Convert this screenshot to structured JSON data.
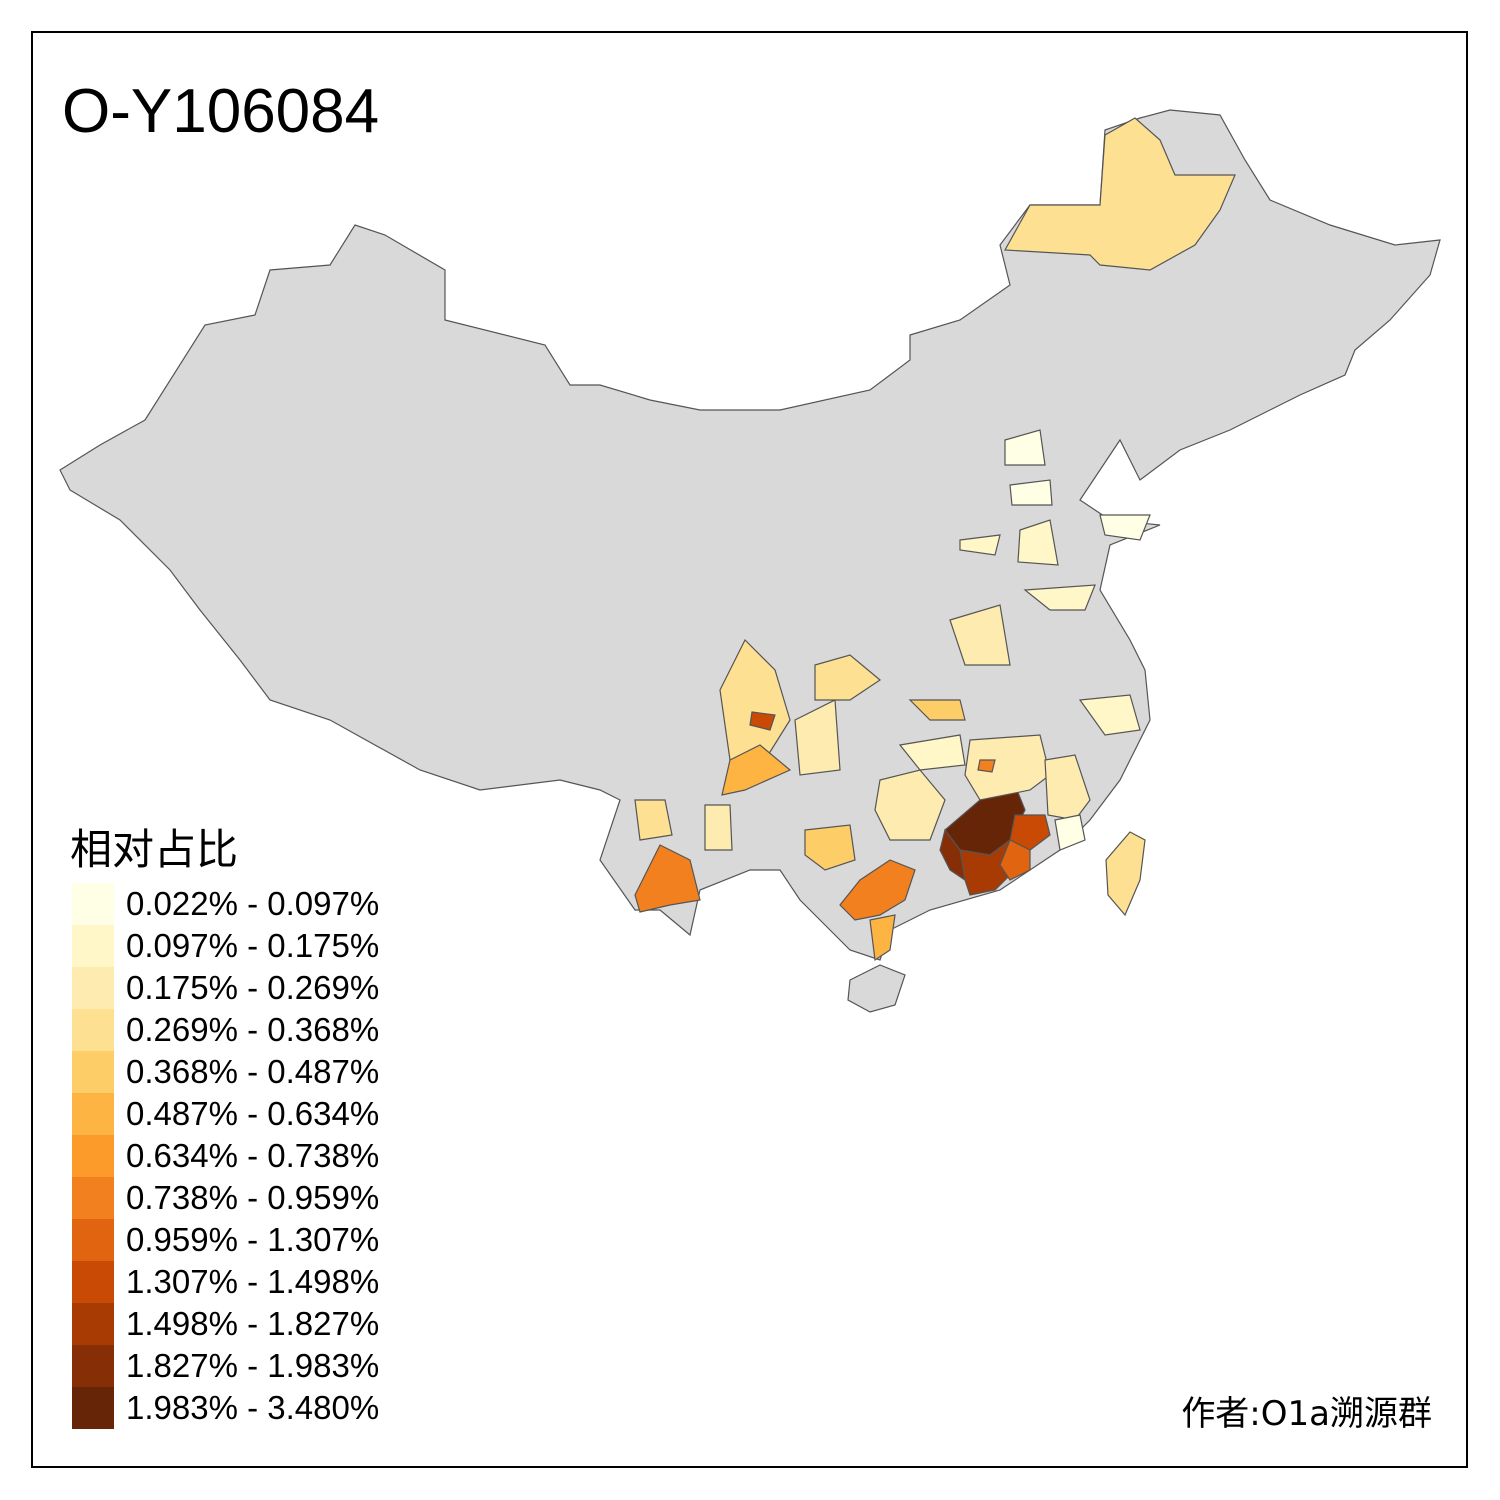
{
  "title": "O-Y106084",
  "legend": {
    "title": "相对占比",
    "items": [
      {
        "label": "0.022% - 0.097%",
        "color": "#FFFFE5"
      },
      {
        "label": "0.097% - 0.175%",
        "color": "#FFF7C8"
      },
      {
        "label": "0.175% - 0.269%",
        "color": "#FEEBB0"
      },
      {
        "label": "0.269% - 0.368%",
        "color": "#FEE092"
      },
      {
        "label": "0.368% - 0.487%",
        "color": "#FDCE68"
      },
      {
        "label": "0.487% - 0.634%",
        "color": "#FDB443"
      },
      {
        "label": "0.634% - 0.738%",
        "color": "#FC9A2A"
      },
      {
        "label": "0.738% - 0.959%",
        "color": "#F2801F"
      },
      {
        "label": "0.959% - 1.307%",
        "color": "#E16511"
      },
      {
        "label": "1.307% - 1.498%",
        "color": "#C94A04"
      },
      {
        "label": "1.498% - 1.827%",
        "color": "#A83A04"
      },
      {
        "label": "1.827% - 1.983%",
        "color": "#862E05"
      },
      {
        "label": "1.983% - 3.480%",
        "color": "#662506"
      }
    ]
  },
  "no_data_color": "#D9D9D9",
  "credit": "作者:O1a溯源群"
}
